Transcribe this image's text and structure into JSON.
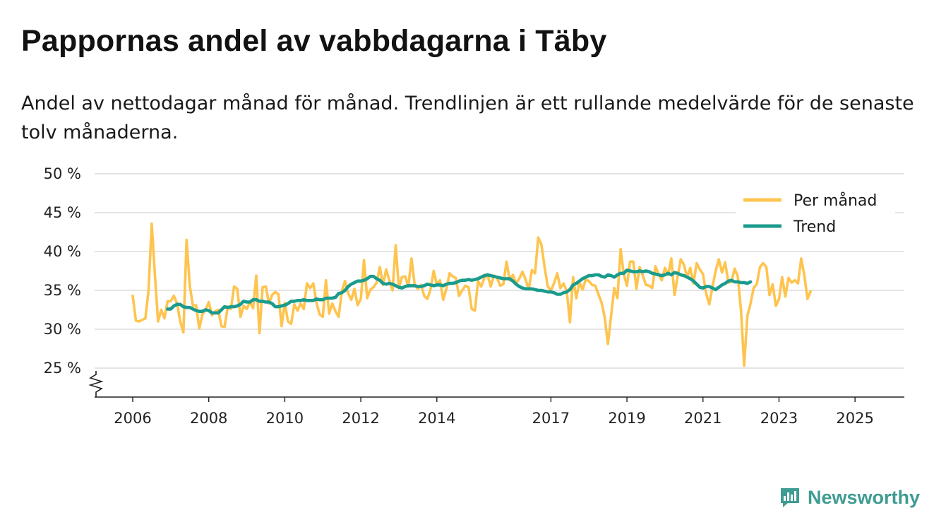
{
  "header": {
    "title": "Pappornas andel av vabbdagarna i Täby",
    "subtitle": "Andel av nettodagar månad för månad. Trendlinjen är ett rullande medelvärde för de senaste tolv månaderna."
  },
  "brand": {
    "name": "Newsworthy",
    "icon": "newsworthy-logo-icon",
    "color": "#3f9c92"
  },
  "chart_data": {
    "type": "line",
    "title": "Pappornas andel av vabbdagarna i Täby",
    "xlabel": "",
    "ylabel": "",
    "ylim": [
      25,
      50
    ],
    "y_axis_broken": true,
    "yticks": [
      25,
      30,
      35,
      40,
      45,
      50
    ],
    "y_tick_suffix": " %",
    "xticks": [
      2006,
      2008,
      2010,
      2012,
      2014,
      2017,
      2019,
      2021,
      2023,
      2025
    ],
    "x_start": "2006-01",
    "grid": true,
    "legend": {
      "position": "top-right",
      "entries": [
        "Per månad",
        "Trend"
      ]
    },
    "series": [
      {
        "name": "Per månad",
        "color": "#fec44f",
        "values": [
          34.3,
          31.1,
          31.0,
          31.2,
          31.4,
          35.0,
          43.6,
          37.0,
          31.0,
          32.5,
          31.4,
          33.6,
          33.6,
          34.3,
          33.3,
          31.0,
          29.6,
          41.5,
          35.6,
          33.0,
          33.1,
          30.1,
          31.9,
          32.5,
          33.5,
          31.8,
          32.3,
          32.5,
          30.4,
          30.3,
          32.9,
          32.6,
          35.5,
          35.2,
          31.6,
          33.0,
          32.6,
          33.5,
          32.7,
          36.9,
          29.5,
          35.4,
          35.5,
          33.3,
          34.4,
          34.8,
          34.5,
          30.4,
          33.4,
          31.0,
          30.7,
          33.2,
          32.4,
          33.3,
          32.6,
          35.9,
          35.3,
          35.9,
          33.4,
          31.9,
          31.6,
          36.3,
          32.0,
          33.3,
          32.3,
          31.6,
          34.9,
          36.2,
          34.6,
          33.8,
          35.2,
          33.1,
          33.9,
          38.9,
          34.0,
          35.1,
          35.4,
          36.0,
          38.0,
          35.7,
          37.7,
          36.3,
          35.0,
          40.8,
          35.3,
          36.7,
          36.8,
          35.5,
          39.1,
          35.7,
          35.2,
          35.7,
          34.3,
          33.9,
          35.1,
          37.5,
          35.7,
          36.3,
          33.8,
          35.2,
          37.2,
          36.8,
          36.6,
          34.3,
          35.0,
          35.6,
          35.4,
          32.6,
          32.4,
          36.2,
          35.5,
          36.6,
          37.0,
          35.5,
          36.9,
          36.6,
          35.6,
          35.8,
          38.7,
          36.3,
          37.0,
          35.9,
          36.5,
          37.4,
          36.4,
          35.1,
          37.6,
          37.2,
          41.8,
          40.9,
          38.0,
          35.5,
          35.0,
          35.9,
          37.2,
          35.3,
          35.9,
          34.9,
          30.9,
          36.7,
          34.0,
          36.0,
          35.1,
          36.4,
          36.2,
          35.7,
          35.6,
          34.5,
          33.4,
          31.5,
          28.1,
          31.7,
          35.3,
          34.0,
          40.3,
          37.1,
          35.6,
          38.7,
          38.7,
          35.2,
          38.0,
          36.9,
          35.7,
          35.6,
          35.3,
          38.1,
          37.1,
          36.3,
          37.9,
          37.0,
          39.1,
          34.4,
          36.8,
          39.0,
          38.3,
          36.7,
          37.9,
          35.9,
          38.5,
          37.7,
          37.1,
          34.6,
          33.2,
          35.4,
          37.5,
          39.0,
          37.3,
          38.6,
          36.0,
          36.1,
          37.8,
          36.8,
          32.4,
          25.3,
          31.7,
          33.3,
          35.3,
          35.8,
          38.0,
          38.5,
          38.0,
          34.4,
          35.8,
          33.0,
          33.9,
          36.7,
          34.2,
          36.6,
          36.0,
          36.3,
          35.9,
          39.1,
          36.9,
          33.9,
          34.9
        ]
      },
      {
        "name": "Trend",
        "color": "#1a9b8d",
        "start_index": 11,
        "values": [
          32.6,
          32.6,
          33.0,
          33.2,
          33.2,
          32.9,
          32.8,
          32.8,
          32.6,
          32.4,
          32.3,
          32.3,
          32.5,
          32.4,
          32.1,
          32.1,
          32.1,
          32.5,
          32.9,
          32.8,
          32.9,
          32.9,
          33.0,
          33.2,
          33.6,
          33.5,
          33.5,
          33.8,
          33.8,
          33.6,
          33.6,
          33.5,
          33.5,
          33.3,
          32.9,
          32.9,
          33.0,
          33.1,
          33.3,
          33.6,
          33.6,
          33.7,
          33.7,
          33.8,
          33.7,
          33.7,
          33.7,
          33.9,
          33.8,
          33.8,
          34.0,
          34.0,
          34.0,
          34.1,
          34.6,
          34.7,
          35.0,
          35.5,
          35.8,
          36.0,
          36.2,
          36.2,
          36.3,
          36.5,
          36.8,
          36.8,
          36.5,
          36.3,
          35.9,
          35.8,
          35.9,
          35.8,
          35.6,
          35.4,
          35.3,
          35.5,
          35.6,
          35.6,
          35.6,
          35.5,
          35.5,
          35.6,
          35.8,
          35.7,
          35.6,
          35.7,
          35.7,
          35.6,
          35.8,
          35.9,
          35.9,
          36.0,
          36.2,
          36.3,
          36.3,
          36.4,
          36.3,
          36.4,
          36.5,
          36.7,
          36.9,
          37.0,
          36.9,
          36.8,
          36.7,
          36.6,
          36.5,
          36.5,
          36.5,
          36.2,
          35.8,
          35.5,
          35.3,
          35.2,
          35.2,
          35.2,
          35.1,
          35.0,
          35.0,
          34.9,
          34.8,
          34.8,
          34.7,
          34.5,
          34.5,
          34.7,
          34.8,
          35.1,
          35.7,
          35.9,
          36.2,
          36.5,
          36.7,
          36.9,
          36.9,
          37.0,
          37.0,
          36.8,
          36.7,
          37.0,
          36.9,
          36.7,
          37.0,
          37.2,
          37.2,
          37.6,
          37.5,
          37.4,
          37.4,
          37.5,
          37.4,
          37.5,
          37.4,
          37.2,
          37.1,
          37.0,
          36.9,
          37.0,
          37.2,
          37.0,
          37.3,
          37.2,
          37.0,
          36.9,
          36.7,
          36.5,
          36.2,
          35.8,
          35.4,
          35.3,
          35.5,
          35.5,
          35.3,
          35.1,
          35.4,
          35.7,
          35.9,
          36.2,
          36.3,
          36.1,
          36.1,
          36.0,
          36.0,
          35.9,
          36.1
        ]
      }
    ]
  }
}
